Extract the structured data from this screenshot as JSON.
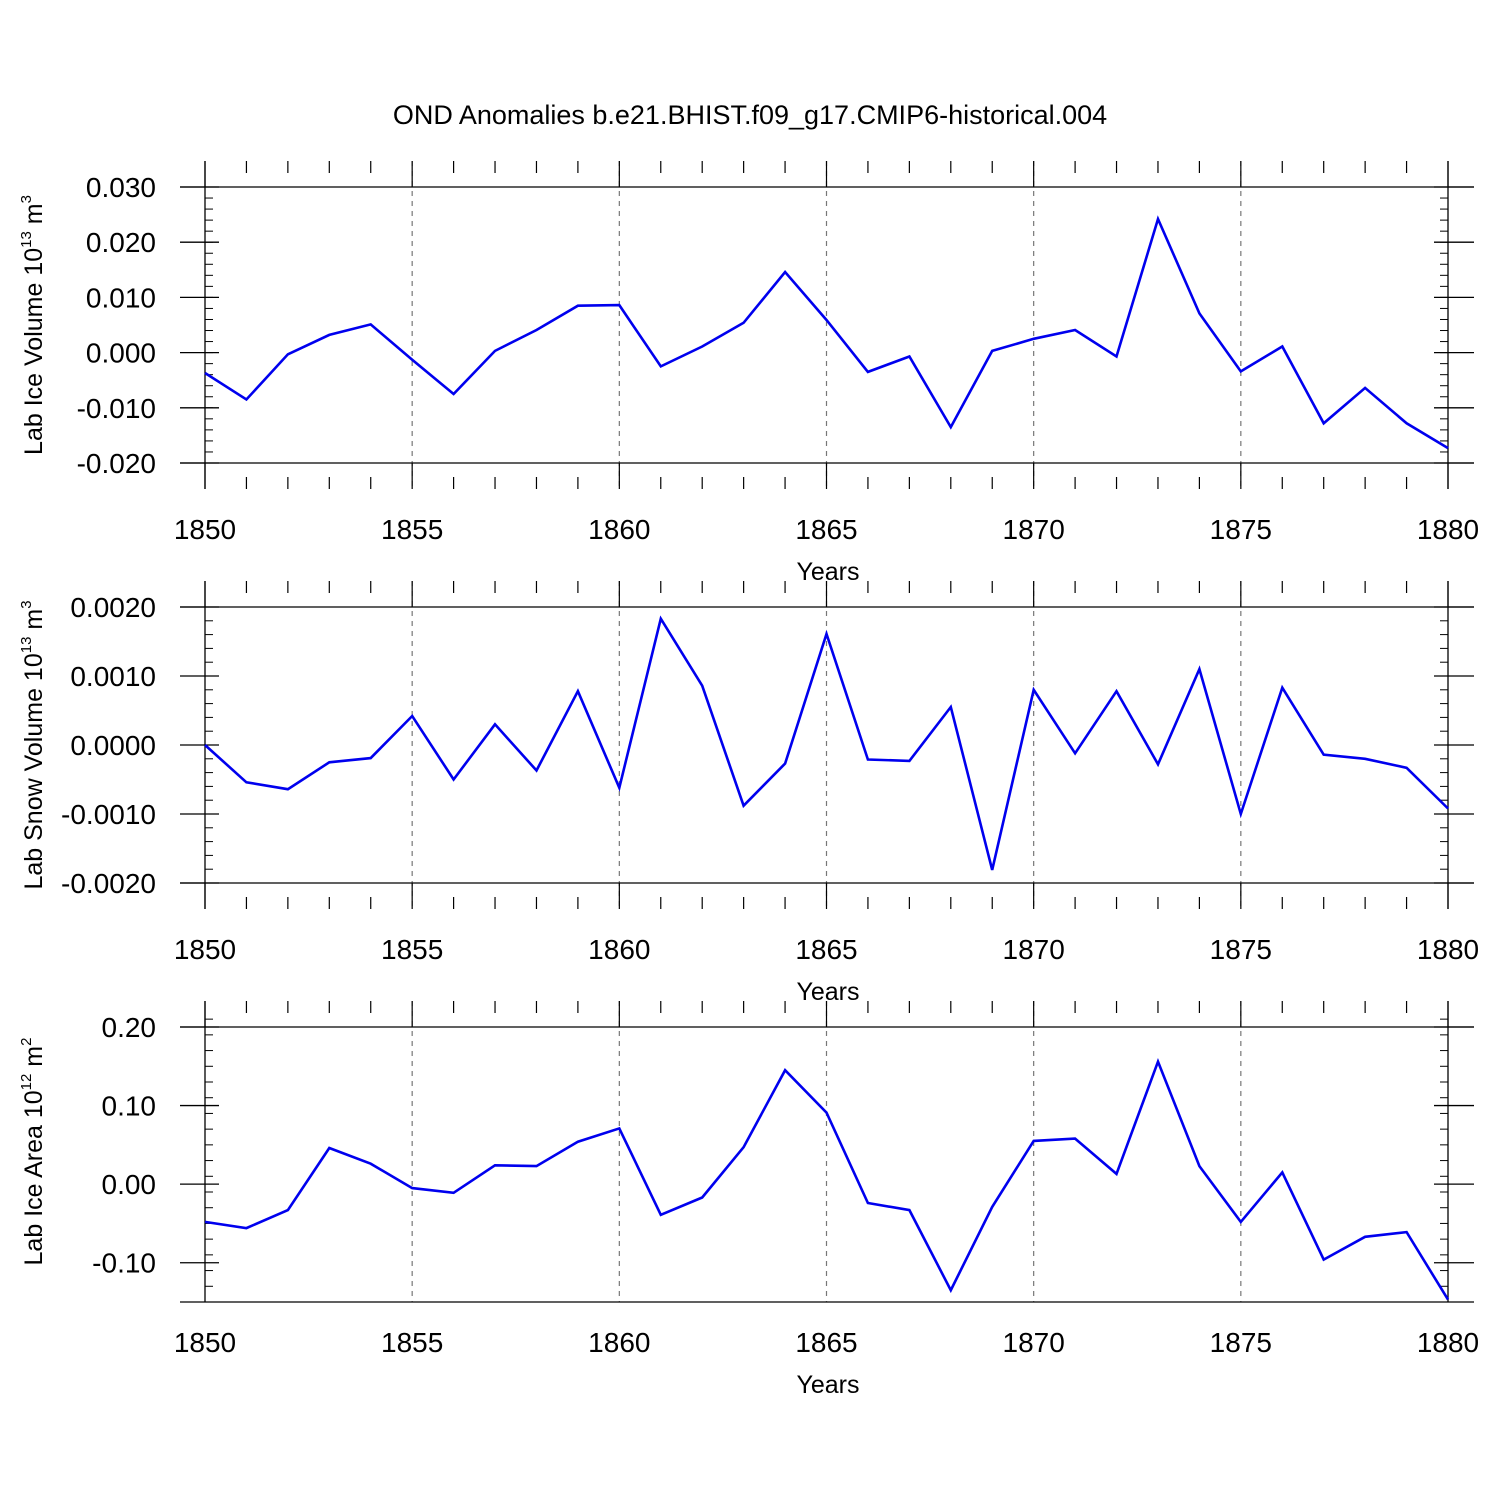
{
  "figure_title": "OND Anomalies b.e21.BHIST.f09_g17.CMIP6-historical.004",
  "chart_data": [
    {
      "type": "line",
      "title": "OND Anomalies b.e21.BHIST.f09_g17.CMIP6-historical.004",
      "ylabel_main": "Lab Ice Volume 10",
      "ylabel_sup1": "13",
      "ylabel_mid": " m",
      "ylabel_sup2": "3",
      "xlabel": "Years",
      "xlim": [
        1850,
        1880
      ],
      "ylim": [
        -0.02,
        0.03
      ],
      "xticks": [
        1850,
        1855,
        1860,
        1865,
        1870,
        1875,
        1880
      ],
      "xtick_labels": [
        "1850",
        "1855",
        "1860",
        "1865",
        "1870",
        "1875",
        "1880"
      ],
      "yticks": [
        -0.02,
        -0.01,
        0.0,
        0.01,
        0.02,
        0.03
      ],
      "ytick_labels": [
        "-0.020",
        "-0.010",
        "0.000",
        "0.010",
        "0.020",
        "0.030"
      ],
      "ymin_minor": 0.002,
      "grid": "vertical dashed at major x ticks",
      "series_color": "#0000ee",
      "x": [
        1850,
        1851,
        1852,
        1853,
        1854,
        1855,
        1856,
        1857,
        1858,
        1859,
        1860,
        1861,
        1862,
        1863,
        1864,
        1865,
        1866,
        1867,
        1868,
        1869,
        1870,
        1871,
        1872,
        1873,
        1874,
        1875,
        1876,
        1877,
        1878,
        1879,
        1880
      ],
      "y": [
        -0.0037,
        -0.0085,
        -0.0003,
        0.0032,
        0.0051,
        -0.0013,
        -0.0075,
        0.0003,
        0.0041,
        0.0085,
        0.0086,
        -0.0025,
        0.0011,
        0.0054,
        0.0146,
        0.0059,
        -0.0035,
        -0.0007,
        -0.0135,
        0.0003,
        0.0025,
        0.0041,
        -0.0007,
        0.0242,
        0.0071,
        -0.0034,
        0.0011,
        -0.0128,
        -0.0064,
        -0.0128,
        -0.0173
      ]
    },
    {
      "type": "line",
      "ylabel_main": "Lab Snow Volume 10",
      "ylabel_sup1": "13",
      "ylabel_mid": " m",
      "ylabel_sup2": "3",
      "xlabel": "Years",
      "xlim": [
        1850,
        1880
      ],
      "ylim": [
        -0.002,
        0.002
      ],
      "xticks": [
        1850,
        1855,
        1860,
        1865,
        1870,
        1875,
        1880
      ],
      "xtick_labels": [
        "1850",
        "1855",
        "1860",
        "1865",
        "1870",
        "1875",
        "1880"
      ],
      "yticks": [
        -0.002,
        -0.001,
        0.0,
        0.001,
        0.002
      ],
      "ytick_labels": [
        "-0.0020",
        "-0.0010",
        "0.0000",
        "0.0010",
        "0.0020"
      ],
      "ymin_minor": 0.0002,
      "grid": "vertical dashed at major x ticks",
      "series_color": "#0000ee",
      "x": [
        1850,
        1851,
        1852,
        1853,
        1854,
        1855,
        1856,
        1857,
        1858,
        1859,
        1860,
        1861,
        1862,
        1863,
        1864,
        1865,
        1866,
        1867,
        1868,
        1869,
        1870,
        1871,
        1872,
        1873,
        1874,
        1875,
        1876,
        1877,
        1878,
        1879,
        1880
      ],
      "y": [
        0.0,
        -0.00054,
        -0.00064,
        -0.00025,
        -0.00019,
        0.00042,
        -0.0005,
        0.0003,
        -0.00037,
        0.00078,
        -0.00062,
        0.00183,
        0.00086,
        -0.00088,
        -0.00027,
        0.00161,
        -0.00021,
        -0.00023,
        0.00055,
        -0.00181,
        0.0008,
        -0.00012,
        0.00078,
        -0.00028,
        0.0011,
        -0.001,
        0.00083,
        -0.00014,
        -0.0002,
        -0.00033,
        -0.00092
      ]
    },
    {
      "type": "line",
      "ylabel_main": "Lab Ice Area 10",
      "ylabel_sup1": "12",
      "ylabel_mid": " m",
      "ylabel_sup2": "2",
      "xlabel": "Years",
      "xlim": [
        1850,
        1880
      ],
      "ylim": [
        -0.15,
        0.2
      ],
      "xticks": [
        1850,
        1855,
        1860,
        1865,
        1870,
        1875,
        1880
      ],
      "xtick_labels": [
        "1850",
        "1855",
        "1860",
        "1865",
        "1870",
        "1875",
        "1880"
      ],
      "yticks": [
        -0.1,
        0.0,
        0.1,
        0.2
      ],
      "ytick_labels": [
        "-0.10",
        "0.00",
        "0.10",
        "0.20"
      ],
      "ymin_minor": 0.02,
      "grid": "vertical dashed at major x ticks",
      "series_color": "#0000ee",
      "x": [
        1850,
        1851,
        1852,
        1853,
        1854,
        1855,
        1856,
        1857,
        1858,
        1859,
        1860,
        1861,
        1862,
        1863,
        1864,
        1865,
        1866,
        1867,
        1868,
        1869,
        1870,
        1871,
        1872,
        1873,
        1874,
        1875,
        1876,
        1877,
        1878,
        1879,
        1880
      ],
      "y": [
        -0.048,
        -0.056,
        -0.033,
        0.046,
        0.026,
        -0.005,
        -0.011,
        0.024,
        0.023,
        0.054,
        0.071,
        -0.039,
        -0.017,
        0.047,
        0.145,
        0.091,
        -0.024,
        -0.033,
        -0.135,
        -0.029,
        0.055,
        0.058,
        0.013,
        0.156,
        0.023,
        -0.048,
        0.015,
        -0.096,
        -0.067,
        -0.061,
        -0.147
      ]
    }
  ]
}
